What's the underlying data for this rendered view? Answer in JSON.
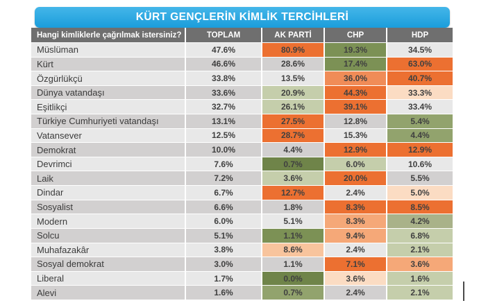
{
  "title": "KÜRT GENÇLERİN KİMLİK TERCİHLERİ",
  "colors": {
    "title_top": "#44B6E9",
    "title_bottom": "#1B9DDB",
    "header_bg": "#6F6F6F",
    "row_light": "#E8E8E8",
    "row_dark": "#D2D0D0",
    "orange_strong": "#EC7031",
    "orange_medium": "#F08C57",
    "salmon": "#F5A878",
    "peach": "#F8C49D",
    "peach_light": "#FBDCC3",
    "green_light": "#C5CEAB",
    "green_light_medium": "#A9B289",
    "green_medium": "#92A36D",
    "green_medium_dark": "#7C9155",
    "green_dark": "#6F8449"
  },
  "table": {
    "question_header": "Hangi kimliklerle çağrılmak istersiniz?",
    "columns": [
      "TOPLAM",
      "AK PARTİ",
      "CHP",
      "HDP"
    ],
    "rows": [
      {
        "label": "Müslüman",
        "toplam": "47.6%",
        "cells": [
          {
            "v": "80.9%",
            "c": "orange_strong"
          },
          {
            "v": "19.3%",
            "c": "green_medium_dark"
          },
          {
            "v": "34.5%",
            "c": "neutral"
          }
        ]
      },
      {
        "label": "Kürt",
        "toplam": "46.6%",
        "cells": [
          {
            "v": "28.6%",
            "c": "neutral"
          },
          {
            "v": "17.4%",
            "c": "green_medium_dark"
          },
          {
            "v": "63.0%",
            "c": "orange_strong"
          }
        ]
      },
      {
        "label": "Özgürlükçü",
        "toplam": "33.8%",
        "cells": [
          {
            "v": "13.5%",
            "c": "neutral"
          },
          {
            "v": "36.0%",
            "c": "orange_medium"
          },
          {
            "v": "40.7%",
            "c": "orange_strong"
          }
        ]
      },
      {
        "label": "Dünya vatandaşı",
        "toplam": "33.6%",
        "cells": [
          {
            "v": "20.9%",
            "c": "green_light"
          },
          {
            "v": "44.3%",
            "c": "orange_strong"
          },
          {
            "v": "33.3%",
            "c": "peach_light"
          }
        ]
      },
      {
        "label": "Eşitlikçi",
        "toplam": "32.7%",
        "cells": [
          {
            "v": "26.1%",
            "c": "green_light"
          },
          {
            "v": "39.1%",
            "c": "orange_strong"
          },
          {
            "v": "33.4%",
            "c": "neutral"
          }
        ]
      },
      {
        "label": "Türkiye Cumhuriyeti vatandaşı",
        "toplam": "13.1%",
        "cells": [
          {
            "v": "27.5%",
            "c": "orange_strong"
          },
          {
            "v": "12.8%",
            "c": "neutral"
          },
          {
            "v": "5.4%",
            "c": "green_medium"
          }
        ]
      },
      {
        "label": "Vatansever",
        "toplam": "12.5%",
        "cells": [
          {
            "v": "28.7%",
            "c": "orange_strong"
          },
          {
            "v": "15.3%",
            "c": "neutral"
          },
          {
            "v": "4.4%",
            "c": "green_medium"
          }
        ]
      },
      {
        "label": "Demokrat",
        "toplam": "10.0%",
        "cells": [
          {
            "v": "4.4%",
            "c": "neutral"
          },
          {
            "v": "12.9%",
            "c": "orange_strong"
          },
          {
            "v": "12.9%",
            "c": "orange_strong"
          }
        ]
      },
      {
        "label": "Devrimci",
        "toplam": "7.6%",
        "cells": [
          {
            "v": "0.7%",
            "c": "green_dark"
          },
          {
            "v": "6.0%",
            "c": "green_light"
          },
          {
            "v": "10.6%",
            "c": "neutral"
          }
        ]
      },
      {
        "label": "Laik",
        "toplam": "7.2%",
        "cells": [
          {
            "v": "3.6%",
            "c": "green_light"
          },
          {
            "v": "20.0%",
            "c": "orange_strong"
          },
          {
            "v": "5.5%",
            "c": "neutral"
          }
        ]
      },
      {
        "label": "Dindar",
        "toplam": "6.7%",
        "cells": [
          {
            "v": "12.7%",
            "c": "orange_strong"
          },
          {
            "v": "2.4%",
            "c": "neutral"
          },
          {
            "v": "5.0%",
            "c": "peach_light"
          }
        ]
      },
      {
        "label": "Sosyalist",
        "toplam": "6.6%",
        "cells": [
          {
            "v": "1.8%",
            "c": "neutral"
          },
          {
            "v": "8.3%",
            "c": "orange_strong"
          },
          {
            "v": "8.5%",
            "c": "orange_strong"
          }
        ]
      },
      {
        "label": "Modern",
        "toplam": "6.0%",
        "cells": [
          {
            "v": "5.1%",
            "c": "neutral"
          },
          {
            "v": "8.3%",
            "c": "salmon"
          },
          {
            "v": "4.2%",
            "c": "green_light_medium"
          }
        ]
      },
      {
        "label": "Solcu",
        "toplam": "5.1%",
        "cells": [
          {
            "v": "1.1%",
            "c": "green_medium_dark"
          },
          {
            "v": "9.4%",
            "c": "salmon"
          },
          {
            "v": "6.8%",
            "c": "green_light"
          }
        ]
      },
      {
        "label": "Muhafazakâr",
        "toplam": "3.8%",
        "cells": [
          {
            "v": "8.6%",
            "c": "peach"
          },
          {
            "v": "2.4%",
            "c": "neutral"
          },
          {
            "v": "2.1%",
            "c": "green_light"
          }
        ]
      },
      {
        "label": "Sosyal demokrat",
        "toplam": "3.0%",
        "cells": [
          {
            "v": "1.1%",
            "c": "neutral"
          },
          {
            "v": "7.1%",
            "c": "orange_strong"
          },
          {
            "v": "3.6%",
            "c": "salmon"
          }
        ]
      },
      {
        "label": "Liberal",
        "toplam": "1.7%",
        "cells": [
          {
            "v": "0.0%",
            "c": "green_dark"
          },
          {
            "v": "3.6%",
            "c": "peach_light"
          },
          {
            "v": "1.6%",
            "c": "green_light"
          }
        ]
      },
      {
        "label": "Alevi",
        "toplam": "1.6%",
        "cells": [
          {
            "v": "0.7%",
            "c": "green_medium"
          },
          {
            "v": "2.4%",
            "c": "neutral"
          },
          {
            "v": "2.1%",
            "c": "green_light"
          }
        ]
      }
    ]
  },
  "chart_data": {
    "type": "table",
    "title": "KÜRT GENÇLERİN KİMLİK TERCİHLERİ",
    "row_header": "Hangi kimliklerle çağrılmak istersiniz?",
    "categories": [
      "Müslüman",
      "Kürt",
      "Özgürlükçü",
      "Dünya vatandaşı",
      "Eşitlikçi",
      "Türkiye Cumhuriyeti vatandaşı",
      "Vatansever",
      "Demokrat",
      "Devrimci",
      "Laik",
      "Dindar",
      "Sosyalist",
      "Modern",
      "Solcu",
      "Muhafazakâr",
      "Sosyal demokrat",
      "Liberal",
      "Alevi"
    ],
    "series": [
      {
        "name": "TOPLAM",
        "values": [
          47.6,
          46.6,
          33.8,
          33.6,
          32.7,
          13.1,
          12.5,
          10.0,
          7.6,
          7.2,
          6.7,
          6.6,
          6.0,
          5.1,
          3.8,
          3.0,
          1.7,
          1.6
        ]
      },
      {
        "name": "AK PARTİ",
        "values": [
          80.9,
          28.6,
          13.5,
          20.9,
          26.1,
          27.5,
          28.7,
          4.4,
          0.7,
          3.6,
          12.7,
          1.8,
          5.1,
          1.1,
          8.6,
          1.1,
          0.0,
          0.7
        ]
      },
      {
        "name": "CHP",
        "values": [
          19.3,
          17.4,
          36.0,
          44.3,
          39.1,
          12.8,
          15.3,
          12.9,
          6.0,
          20.0,
          2.4,
          8.3,
          8.3,
          9.4,
          2.4,
          7.1,
          3.6,
          2.4
        ]
      },
      {
        "name": "HDP",
        "values": [
          34.5,
          63.0,
          40.7,
          33.3,
          33.4,
          5.4,
          4.4,
          12.9,
          10.6,
          5.5,
          5.0,
          8.5,
          4.2,
          6.8,
          2.1,
          3.6,
          1.6,
          2.1
        ]
      }
    ],
    "unit": "%",
    "legend_position": "none",
    "notes": "Heatmap shading: orange = higher than total, green = lower than total, gray = near total"
  }
}
